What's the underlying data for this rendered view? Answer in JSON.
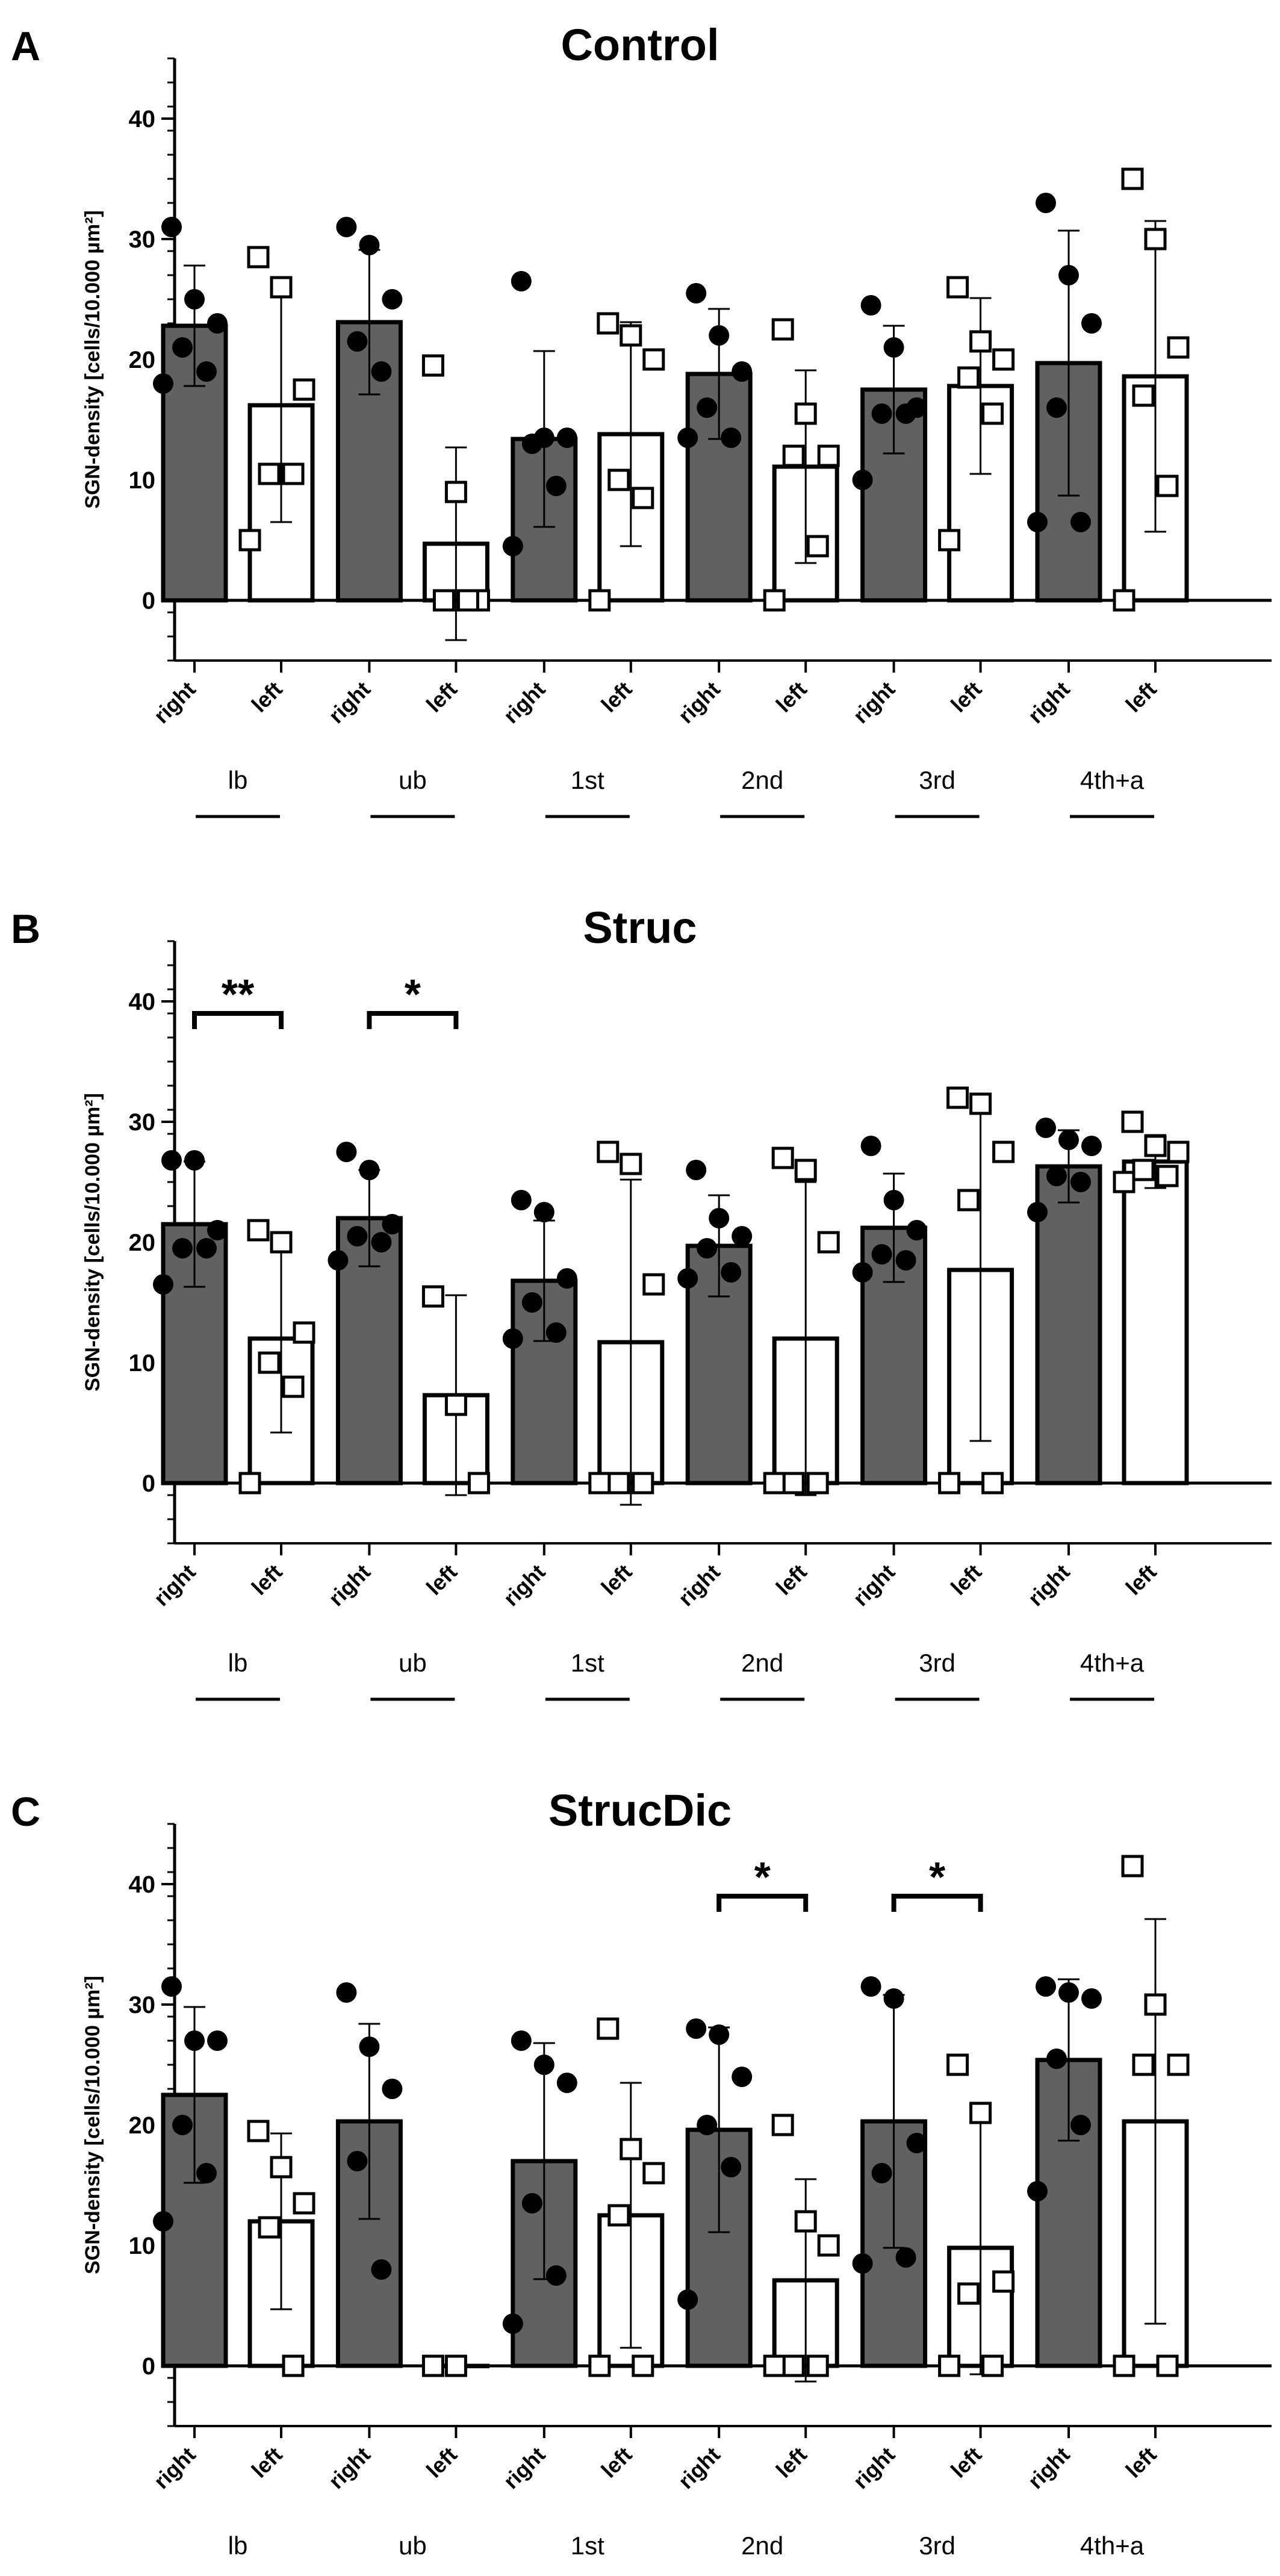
{
  "chart_data": [
    {
      "type": "bar",
      "panel_label": "A",
      "title": "Control",
      "ylabel": "SGN-density [cells/10.000 µm²]",
      "ylim": [
        -5,
        45
      ],
      "yticks": [
        0,
        10,
        20,
        30,
        40
      ],
      "tick_labels": [
        "0",
        "10",
        "20",
        "30",
        "40"
      ],
      "side_labels": [
        "right",
        "left"
      ],
      "groups": [
        "lb",
        "ub",
        "1st",
        "2nd",
        "3rd",
        "4th+a"
      ],
      "series": [
        {
          "name": "right",
          "values": [
            22.8,
            23.1,
            13.4,
            18.8,
            17.5,
            19.7
          ],
          "sd": [
            5.0,
            6.0,
            7.3,
            5.4,
            5.3,
            11.0
          ]
        },
        {
          "name": "left",
          "values": [
            16.2,
            4.7,
            13.8,
            11.1,
            17.8,
            18.6
          ],
          "sd": [
            9.7,
            8.0,
            9.3,
            8.0,
            7.3,
            12.9
          ]
        }
      ],
      "points": [
        {
          "right": [
            31.0,
            25.0,
            23.0,
            21.0,
            19.0,
            18.0
          ],
          "left": [
            28.5,
            26.0,
            17.5,
            10.5,
            10.5,
            5.0
          ]
        },
        {
          "right": [
            31.0,
            29.5,
            25.0,
            21.5,
            19.0
          ],
          "left": [
            19.5,
            9.0,
            0.0,
            0.0,
            0.0
          ]
        },
        {
          "right": [
            26.5,
            13.5,
            13.5,
            13.0,
            9.5,
            4.5
          ],
          "left": [
            23.0,
            22.0,
            20.0,
            10.0,
            8.5,
            0.0
          ]
        },
        {
          "right": [
            25.5,
            22.0,
            19.0,
            16.0,
            13.5,
            13.5
          ],
          "left": [
            22.5,
            15.5,
            12.0,
            12.0,
            4.5,
            0.0
          ]
        },
        {
          "right": [
            24.5,
            21.0,
            16.0,
            15.5,
            15.5,
            10.0
          ],
          "left": [
            26.0,
            21.5,
            20.0,
            18.5,
            15.5,
            5.0
          ]
        },
        {
          "right": [
            33.0,
            27.0,
            23.0,
            16.0,
            6.5,
            6.5
          ],
          "left": [
            35.0,
            30.0,
            21.0,
            17.0,
            9.5,
            0.0
          ]
        }
      ],
      "significance": []
    },
    {
      "type": "bar",
      "panel_label": "B",
      "title": "Struc",
      "ylabel": "SGN-density [cells/10.000 µm²]",
      "ylim": [
        -5,
        45
      ],
      "yticks": [
        0,
        10,
        20,
        30,
        40
      ],
      "tick_labels": [
        "0",
        "10",
        "20",
        "30",
        "40"
      ],
      "side_labels": [
        "right",
        "left"
      ],
      "groups": [
        "lb",
        "ub",
        "1st",
        "2nd",
        "3rd",
        "4th+a"
      ],
      "series": [
        {
          "name": "right",
          "values": [
            21.5,
            22.0,
            16.8,
            19.7,
            21.2,
            26.3
          ],
          "sd": [
            5.2,
            4.0,
            5.0,
            4.2,
            4.5,
            3.0
          ]
        },
        {
          "name": "left",
          "values": [
            12.0,
            7.3,
            11.7,
            12.0,
            17.7,
            26.7
          ],
          "sd": [
            7.8,
            8.3,
            13.5,
            13.0,
            14.2,
            2.2
          ]
        }
      ],
      "points": [
        {
          "right": [
            26.8,
            26.8,
            21.0,
            19.5,
            19.5,
            16.5
          ],
          "left": [
            21.0,
            20.0,
            12.5,
            10.0,
            8.0,
            0.0
          ]
        },
        {
          "right": [
            27.5,
            26.0,
            21.5,
            20.5,
            20.0,
            18.5
          ],
          "left": [
            15.5,
            6.5,
            0.0
          ]
        },
        {
          "right": [
            23.5,
            22.5,
            17.0,
            15.0,
            12.5,
            12.0
          ],
          "left": [
            27.5,
            26.5,
            16.5,
            0.0,
            0.0,
            0.0
          ]
        },
        {
          "right": [
            26.0,
            22.0,
            20.5,
            19.5,
            17.5,
            17.0
          ],
          "left": [
            27.0,
            26.0,
            20.0,
            0.0,
            0.0,
            0.0
          ]
        },
        {
          "right": [
            28.0,
            23.5,
            21.0,
            19.0,
            18.5,
            17.5
          ],
          "left": [
            32.0,
            31.5,
            27.5,
            23.5,
            0.0,
            0.0
          ]
        },
        {
          "right": [
            29.5,
            28.5,
            28.0,
            25.5,
            25.0,
            22.5
          ],
          "left": [
            30.0,
            28.0,
            27.5,
            26.0,
            25.5,
            25.0
          ]
        }
      ],
      "significance": [
        {
          "group": "lb",
          "label": "**"
        },
        {
          "group": "ub",
          "label": "*"
        }
      ]
    },
    {
      "type": "bar",
      "panel_label": "C",
      "title": "StrucDic",
      "ylabel": "SGN-density [cells/10.000 µm²]",
      "ylim": [
        -5,
        45
      ],
      "yticks": [
        0,
        10,
        20,
        30,
        40
      ],
      "tick_labels": [
        "0",
        "10",
        "20",
        "30",
        "40"
      ],
      "side_labels": [
        "right",
        "left"
      ],
      "groups": [
        "lb",
        "ub",
        "1st",
        "2nd",
        "3rd",
        "4th+a"
      ],
      "series": [
        {
          "name": "right",
          "values": [
            22.5,
            20.3,
            17.0,
            19.6,
            20.3,
            25.4
          ],
          "sd": [
            7.3,
            8.1,
            9.8,
            8.5,
            10.5,
            6.7
          ]
        },
        {
          "name": "left",
          "values": [
            12.0,
            0.0,
            12.5,
            7.1,
            9.8,
            20.3
          ],
          "sd": [
            7.3,
            0.0,
            11.0,
            8.4,
            10.5,
            16.8
          ]
        }
      ],
      "points": [
        {
          "right": [
            31.5,
            27.0,
            27.0,
            20.0,
            16.0,
            12.0
          ],
          "left": [
            19.5,
            16.5,
            13.5,
            11.5,
            0.0
          ]
        },
        {
          "right": [
            31.0,
            26.5,
            23.0,
            17.0,
            8.0
          ],
          "left": [
            0.0,
            0.0
          ]
        },
        {
          "right": [
            27.0,
            25.0,
            23.5,
            13.5,
            7.5,
            3.5
          ],
          "left": [
            28.0,
            18.0,
            16.0,
            12.5,
            0.0,
            0.0
          ]
        },
        {
          "right": [
            28.0,
            27.5,
            24.0,
            20.0,
            16.5,
            5.5
          ],
          "left": [
            20.0,
            12.0,
            10.0,
            0.0,
            0.0,
            0.0
          ]
        },
        {
          "right": [
            31.5,
            30.5,
            18.5,
            16.0,
            9.0,
            8.5
          ],
          "left": [
            25.0,
            21.0,
            7.0,
            6.0,
            0.0,
            0.0
          ]
        },
        {
          "right": [
            31.5,
            31.0,
            30.5,
            25.5,
            20.0,
            14.5
          ],
          "left": [
            41.5,
            30.0,
            25.0,
            25.0,
            0.0,
            0.0
          ]
        }
      ],
      "significance": [
        {
          "group": "2nd",
          "label": "*"
        },
        {
          "group": "3rd",
          "label": "*"
        }
      ]
    }
  ]
}
